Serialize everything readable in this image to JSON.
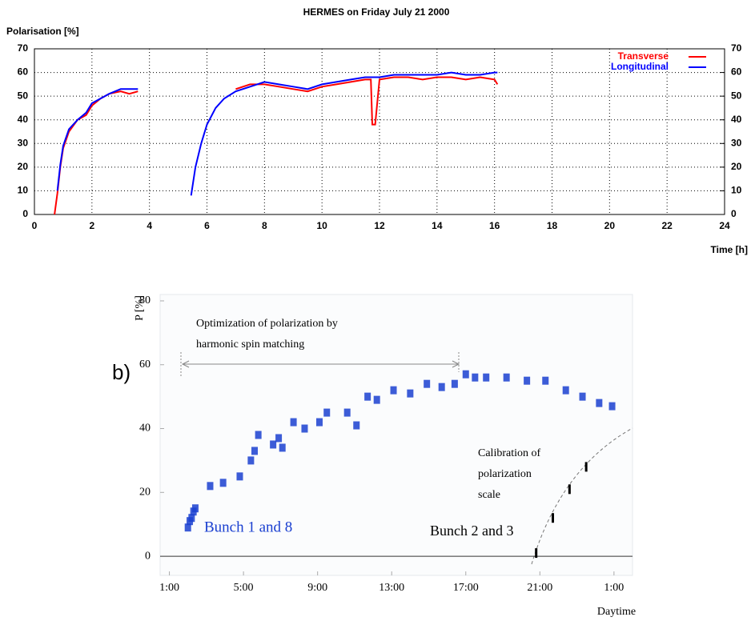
{
  "chart_data": [
    {
      "type": "line",
      "title": "HERMES on Friday July 21 2000",
      "ylabel": "Polarisation [%]",
      "xlabel": "Time [h]",
      "x": [
        0.7,
        0.8,
        0.9,
        1.0,
        1.2,
        1.5,
        1.8,
        2.0,
        2.3,
        2.6,
        3.0,
        3.3,
        3.6,
        4.5,
        5.45,
        5.6,
        5.8,
        6.0,
        6.3,
        6.6,
        7.0,
        7.5,
        8.0,
        8.5,
        9.0,
        9.5,
        10.0,
        10.5,
        11.0,
        11.5,
        11.7,
        11.75,
        11.85,
        12.0,
        12.5,
        13.0,
        13.5,
        14.0,
        14.5,
        15.0,
        15.5,
        16.0,
        16.1
      ],
      "series": [
        {
          "name": "Transverse",
          "color": "#ff0000",
          "values": [
            0,
            9,
            20,
            28,
            35,
            40,
            42,
            46,
            49,
            51,
            52,
            51,
            52,
            null,
            null,
            null,
            null,
            null,
            null,
            null,
            53,
            55,
            55,
            54,
            53,
            52,
            54,
            55,
            56,
            57,
            57,
            38,
            38,
            57,
            58,
            58,
            57,
            58,
            58,
            57,
            58,
            57,
            55
          ]
        },
        {
          "name": "Longitudinal",
          "color": "#0000ff",
          "values": [
            null,
            10,
            21,
            29,
            36,
            40,
            43,
            47,
            49,
            51,
            53,
            53,
            53,
            null,
            8,
            20,
            30,
            38,
            45,
            49,
            52,
            54,
            56,
            55,
            54,
            53,
            55,
            56,
            57,
            58,
            58,
            58,
            58,
            58,
            59,
            59,
            59,
            59,
            60,
            59,
            59,
            60,
            60
          ]
        }
      ],
      "xlim": [
        0,
        24
      ],
      "xticks": [
        0,
        2,
        4,
        6,
        8,
        10,
        12,
        14,
        16,
        18,
        20,
        22,
        24
      ],
      "ylim": [
        0,
        70
      ],
      "yticks": [
        0,
        10,
        20,
        30,
        40,
        50,
        60,
        70
      ],
      "y2lim": [
        0,
        70
      ],
      "y2ticks": [
        0,
        10,
        20,
        30,
        40,
        50,
        60,
        70
      ],
      "grid": true,
      "legend": "top-right"
    },
    {
      "type": "scatter",
      "ylabel": "P [%]",
      "xlabel": "Daytime",
      "annotations": [
        [
          "b)"
        ],
        [
          "Optimization of polarization by",
          "harmonic spin matching"
        ],
        [
          "Calibration of",
          "polarization",
          "scale"
        ]
      ],
      "series": [
        {
          "name": "Bunch 1 and 8",
          "color": "#1a3fd0",
          "x": [
            2.0,
            2.1,
            2.2,
            2.3,
            2.4,
            3.2,
            3.9,
            4.8,
            5.4,
            5.6,
            5.8,
            6.6,
            6.9,
            7.1,
            7.7,
            8.3,
            9.1,
            9.5,
            10.6,
            11.1,
            11.7,
            12.2,
            13.1,
            14.0,
            14.9,
            15.7,
            16.4,
            17.0,
            17.5,
            18.1,
            19.2,
            20.3,
            21.3,
            22.4,
            23.3,
            24.2,
            24.9
          ],
          "values": [
            9,
            11,
            12,
            14,
            15,
            22,
            23,
            25,
            30,
            33,
            38,
            35,
            37,
            34,
            42,
            40,
            42,
            45,
            45,
            41,
            50,
            49,
            52,
            51,
            54,
            53,
            54,
            57,
            56,
            56,
            56,
            55,
            55,
            52,
            50,
            48,
            47
          ]
        },
        {
          "name": "Bunch 2 and 3",
          "color": "#000000",
          "x": [
            20.8,
            21.7,
            22.6,
            23.5
          ],
          "values": [
            1,
            12,
            21,
            28
          ]
        }
      ],
      "xlim": [
        0.5,
        26
      ],
      "xticks": [
        {
          "value": 1,
          "label": "1:00"
        },
        {
          "value": 5,
          "label": "5:00"
        },
        {
          "value": 9,
          "label": "9:00"
        },
        {
          "value": 13,
          "label": "13:00"
        },
        {
          "value": 17,
          "label": "17:00"
        },
        {
          "value": 21,
          "label": "21:00"
        },
        {
          "value": 25,
          "label": "1:00"
        }
      ],
      "ylim": [
        -6,
        82
      ],
      "yticks": [
        0,
        20,
        40,
        60,
        80
      ]
    }
  ]
}
